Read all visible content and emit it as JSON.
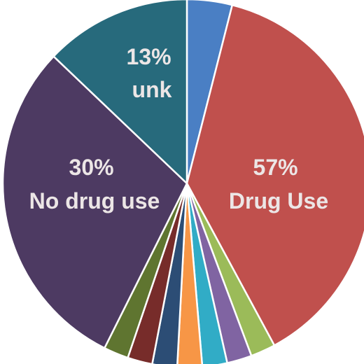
{
  "chart_data": {
    "type": "pie",
    "start_angle_deg": 0,
    "direction": "clockwise",
    "slices": [
      {
        "name": "",
        "value": 4.0,
        "color": "#4a7fc4"
      },
      {
        "name": "Drug Use",
        "value": 38.5,
        "color": "#c0504d"
      },
      {
        "name": "",
        "value": 2.2,
        "color": "#9bbb59"
      },
      {
        "name": "",
        "value": 2.2,
        "color": "#8064a2"
      },
      {
        "name": "",
        "value": 2.2,
        "color": "#31acc6"
      },
      {
        "name": "",
        "value": 2.2,
        "color": "#f79646"
      },
      {
        "name": "",
        "value": 2.2,
        "color": "#2c4d75"
      },
      {
        "name": "",
        "value": 2.2,
        "color": "#772c2a"
      },
      {
        "name": "",
        "value": 2.2,
        "color": "#5f7530"
      },
      {
        "name": "No drug use",
        "value": 30.0,
        "color": "#4d3a62"
      },
      {
        "name": "unk",
        "value": 13.0,
        "color": "#276a7c"
      }
    ],
    "labels": [
      {
        "slice": 1,
        "line1": "57%",
        "line2": "Drug Use"
      },
      {
        "slice": 9,
        "line1": "30%",
        "line2": "No drug use"
      },
      {
        "slice": 10,
        "line1": "13%",
        "line2": "unk"
      }
    ]
  }
}
